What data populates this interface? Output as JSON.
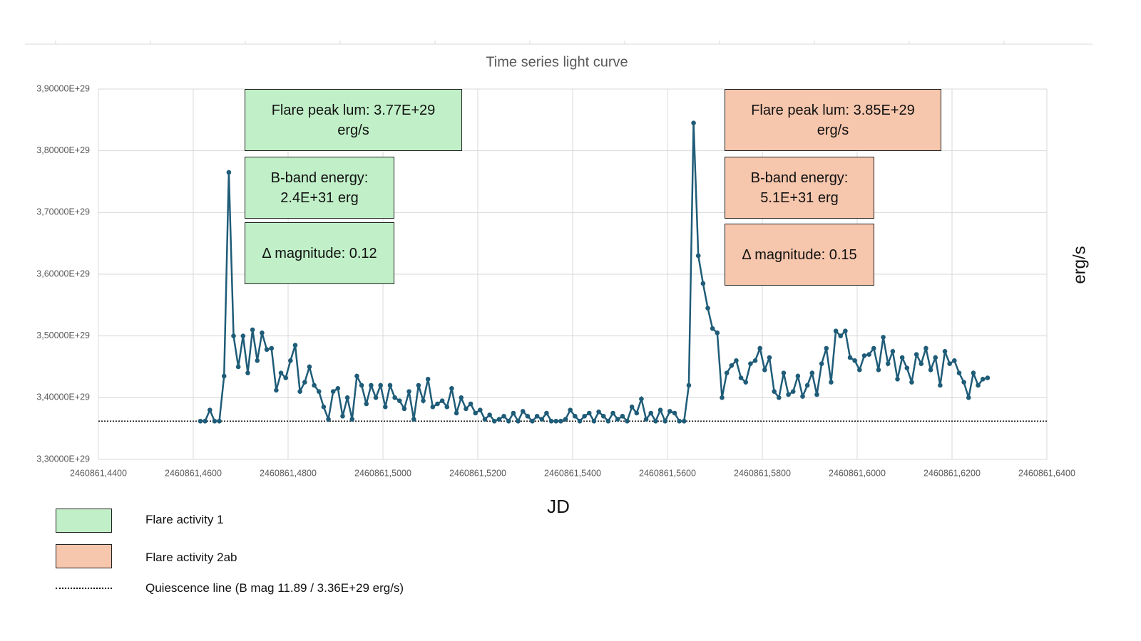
{
  "chart_data": {
    "type": "line",
    "title": "Time series light curve",
    "xlabel": "JD",
    "ylabel": "erg/s",
    "xlim": [
      2460861.44,
      2460861.64
    ],
    "xticks": [
      {
        "value": 2460861.44,
        "label": "2460861,4400"
      },
      {
        "value": 2460861.46,
        "label": "2460861,4600"
      },
      {
        "value": 2460861.48,
        "label": "2460861,4800"
      },
      {
        "value": 2460861.5,
        "label": "2460861,5000"
      },
      {
        "value": 2460861.52,
        "label": "2460861,5200"
      },
      {
        "value": 2460861.54,
        "label": "2460861,5400"
      },
      {
        "value": 2460861.56,
        "label": "2460861,5600"
      },
      {
        "value": 2460861.58,
        "label": "2460861,5800"
      },
      {
        "value": 2460861.6,
        "label": "2460861,6000"
      },
      {
        "value": 2460861.62,
        "label": "2460861,6200"
      },
      {
        "value": 2460861.64,
        "label": "2460861,6400"
      }
    ],
    "ylim": [
      3.3e+29,
      3.9e+29
    ],
    "yticks": [
      {
        "value": 3.3e+29,
        "label": "3,30000E+29"
      },
      {
        "value": 3.4e+29,
        "label": "3,40000E+29"
      },
      {
        "value": 3.5e+29,
        "label": "3,50000E+29"
      },
      {
        "value": 3.6e+29,
        "label": "3,60000E+29"
      },
      {
        "value": 3.7e+29,
        "label": "3,70000E+29"
      },
      {
        "value": 3.8e+29,
        "label": "3,80000E+29"
      },
      {
        "value": 3.9e+29,
        "label": "3,90000E+29"
      }
    ],
    "grid": true,
    "color": "#1f5c78",
    "quiescence_level": 3.362e+29,
    "x": [
      2460861.4615,
      2460861.4625,
      2460861.4635,
      2460861.4645,
      2460861.4655,
      2460861.4665,
      2460861.4675,
      2460861.4685,
      2460861.4695,
      2460861.4705,
      2460861.4715,
      2460861.4725,
      2460861.4735,
      2460861.4745,
      2460861.4755,
      2460861.4765,
      2460861.4775,
      2460861.4785,
      2460861.4795,
      2460861.4805,
      2460861.4815,
      2460861.4825,
      2460861.4835,
      2460861.4845,
      2460861.4855,
      2460861.4865,
      2460861.4875,
      2460861.4885,
      2460861.4895,
      2460861.4905,
      2460861.4915,
      2460861.4925,
      2460861.4935,
      2460861.4945,
      2460861.4955,
      2460861.4965,
      2460861.4975,
      2460861.4985,
      2460861.4995,
      2460861.5005,
      2460861.5015,
      2460861.5025,
      2460861.5035,
      2460861.5045,
      2460861.5055,
      2460861.5065,
      2460861.5075,
      2460861.5085,
      2460861.5095,
      2460861.5105,
      2460861.5115,
      2460861.5125,
      2460861.5135,
      2460861.5145,
      2460861.5155,
      2460861.5165,
      2460861.5175,
      2460861.5185,
      2460861.5195,
      2460861.5205,
      2460861.5215,
      2460861.5225,
      2460861.5235,
      2460861.5245,
      2460861.5255,
      2460861.5265,
      2460861.5275,
      2460861.5285,
      2460861.5295,
      2460861.5305,
      2460861.5315,
      2460861.5325,
      2460861.5335,
      2460861.5345,
      2460861.5355,
      2460861.5365,
      2460861.5375,
      2460861.5385,
      2460861.5395,
      2460861.5405,
      2460861.5415,
      2460861.5425,
      2460861.5435,
      2460861.5445,
      2460861.5455,
      2460861.5465,
      2460861.5475,
      2460861.5485,
      2460861.5495,
      2460861.5505,
      2460861.5515,
      2460861.5525,
      2460861.5535,
      2460861.5545,
      2460861.5555,
      2460861.5565,
      2460861.5575,
      2460861.5585,
      2460861.5595,
      2460861.5605,
      2460861.5615,
      2460861.5625,
      2460861.5635,
      2460861.5645,
      2460861.5655,
      2460861.5665,
      2460861.5675,
      2460861.5685,
      2460861.5695,
      2460861.5705,
      2460861.5715,
      2460861.5725,
      2460861.5735,
      2460861.5745,
      2460861.5755,
      2460861.5765,
      2460861.5775,
      2460861.5785,
      2460861.5795,
      2460861.5805,
      2460861.5815,
      2460861.5825,
      2460861.5835,
      2460861.5845,
      2460861.5855,
      2460861.5865,
      2460861.5875,
      2460861.5885,
      2460861.5895,
      2460861.5905,
      2460861.5915,
      2460861.5925,
      2460861.5935,
      2460861.5945,
      2460861.5955,
      2460861.5965,
      2460861.5975,
      2460861.5985,
      2460861.5995,
      2460861.6005,
      2460861.6015,
      2460861.6025,
      2460861.6035,
      2460861.6045,
      2460861.6055,
      2460861.6065,
      2460861.6075,
      2460861.6085,
      2460861.6095,
      2460861.6105,
      2460861.6115,
      2460861.6125,
      2460861.6135,
      2460861.6145,
      2460861.6155,
      2460861.6165,
      2460861.6175,
      2460861.6185,
      2460861.6195,
      2460861.6205,
      2460861.6215,
      2460861.6225,
      2460861.6235,
      2460861.6245,
      2460861.6255,
      2460861.6265,
      2460861.6275
    ],
    "values": [
      3.362e+29,
      3.362e+29,
      3.38e+29,
      3.362e+29,
      3.362e+29,
      3.435e+29,
      3.765e+29,
      3.5e+29,
      3.45e+29,
      3.5e+29,
      3.44e+29,
      3.51e+29,
      3.46e+29,
      3.505e+29,
      3.478e+29,
      3.48e+29,
      3.412e+29,
      3.44e+29,
      3.432e+29,
      3.46e+29,
      3.485e+29,
      3.41e+29,
      3.425e+29,
      3.45e+29,
      3.42e+29,
      3.41e+29,
      3.385e+29,
      3.365e+29,
      3.41e+29,
      3.415e+29,
      3.37e+29,
      3.4e+29,
      3.365e+29,
      3.435e+29,
      3.42e+29,
      3.39e+29,
      3.42e+29,
      3.4e+29,
      3.42e+29,
      3.385e+29,
      3.42e+29,
      3.4e+29,
      3.395e+29,
      3.382e+29,
      3.41e+29,
      3.365e+29,
      3.42e+29,
      3.395e+29,
      3.43e+29,
      3.385e+29,
      3.39e+29,
      3.395e+29,
      3.385e+29,
      3.415e+29,
      3.375e+29,
      3.4e+29,
      3.382e+29,
      3.39e+29,
      3.375e+29,
      3.38e+29,
      3.365e+29,
      3.372e+29,
      3.362e+29,
      3.365e+29,
      3.37e+29,
      3.362e+29,
      3.375e+29,
      3.362e+29,
      3.378e+29,
      3.37e+29,
      3.362e+29,
      3.37e+29,
      3.365e+29,
      3.375e+29,
      3.362e+29,
      3.362e+29,
      3.362e+29,
      3.365e+29,
      3.38e+29,
      3.37e+29,
      3.362e+29,
      3.37e+29,
      3.375e+29,
      3.362e+29,
      3.377e+29,
      3.37e+29,
      3.362e+29,
      3.375e+29,
      3.365e+29,
      3.37e+29,
      3.362e+29,
      3.385e+29,
      3.375e+29,
      3.398e+29,
      3.365e+29,
      3.375e+29,
      3.362e+29,
      3.38e+29,
      3.362e+29,
      3.378e+29,
      3.375e+29,
      3.362e+29,
      3.362e+29,
      3.42e+29,
      3.845e+29,
      3.63e+29,
      3.585e+29,
      3.545e+29,
      3.512e+29,
      3.505e+29,
      3.4e+29,
      3.44e+29,
      3.452e+29,
      3.46e+29,
      3.432e+29,
      3.425e+29,
      3.455e+29,
      3.46e+29,
      3.48e+29,
      3.445e+29,
      3.465e+29,
      3.41e+29,
      3.4e+29,
      3.44e+29,
      3.405e+29,
      3.41e+29,
      3.435e+29,
      3.402e+29,
      3.42e+29,
      3.44e+29,
      3.405e+29,
      3.455e+29,
      3.48e+29,
      3.425e+29,
      3.508e+29,
      3.5e+29,
      3.508e+29,
      3.465e+29,
      3.46e+29,
      3.445e+29,
      3.468e+29,
      3.47e+29,
      3.48e+29,
      3.445e+29,
      3.498e+29,
      3.455e+29,
      3.475e+29,
      3.43e+29,
      3.465e+29,
      3.448e+29,
      3.425e+29,
      3.47e+29,
      3.455e+29,
      3.48e+29,
      3.445e+29,
      3.465e+29,
      3.42e+29,
      3.475e+29,
      3.455e+29,
      3.46e+29,
      3.44e+29,
      3.425e+29,
      3.4e+29,
      3.44e+29,
      3.42e+29,
      3.43e+29,
      3.432e+29
    ],
    "annotations": [
      {
        "text": "Flare peak lum: 3.77E+29 erg/s",
        "color": "#c1f0c8"
      },
      {
        "text": "B-band energy: 2.4E+31 erg",
        "color": "#c1f0c8"
      },
      {
        "text": "Δ magnitude: 0.12",
        "color": "#c1f0c8"
      },
      {
        "text": "Flare peak lum: 3.85E+29 erg/s",
        "color": "#f6c6ad"
      },
      {
        "text": "B-band energy: 5.1E+31 erg",
        "color": "#f6c6ad"
      },
      {
        "text": "Δ magnitude: 0.15",
        "color": "#f6c6ad"
      }
    ],
    "legend": [
      {
        "label": "Flare activity 1",
        "color": "#c1f0c8"
      },
      {
        "label": "Flare activity 2ab",
        "color": "#f6c6ad"
      },
      {
        "label": "Quiescence line (B mag 11.89 / 3.36E+29 erg/s)",
        "color": "#000000"
      }
    ]
  }
}
